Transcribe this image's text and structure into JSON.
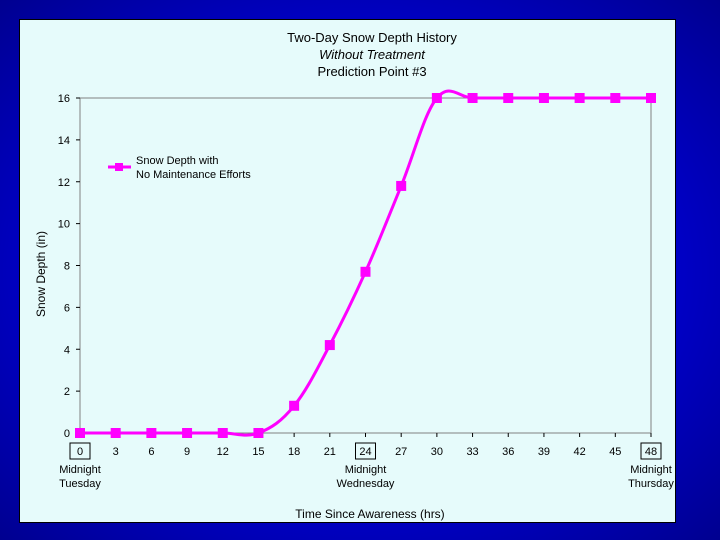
{
  "chart_data": {
    "type": "line",
    "title_lines": [
      "Two-Day Snow Depth History",
      "Without Treatment",
      "Prediction Point #3"
    ],
    "xlabel": "Time Since Awareness (hrs)",
    "ylabel": "Snow Depth (in)",
    "xlim": [
      0,
      48
    ],
    "ylim": [
      0,
      16
    ],
    "x_ticks": [
      "0",
      "3",
      "6",
      "9",
      "12",
      "15",
      "18",
      "21",
      "24",
      "27",
      "30",
      "33",
      "36",
      "39",
      "42",
      "45",
      "48"
    ],
    "boxed_x_ticks": [
      "0",
      "24",
      "48"
    ],
    "y_ticks": [
      "0",
      "2",
      "4",
      "6",
      "8",
      "10",
      "12",
      "14",
      "16"
    ],
    "day_labels": [
      {
        "x": 0,
        "line1": "Midnight",
        "line2": "Tuesday"
      },
      {
        "x": 24,
        "line1": "Midnight",
        "line2": "Wednesday"
      },
      {
        "x": 48,
        "line1": "Midnight",
        "line2": "Thursday"
      }
    ],
    "grid": false,
    "legend_position": "top-left",
    "series": [
      {
        "name": "Snow Depth with No Maintenance Efforts",
        "legend_lines": [
          "Snow Depth with",
          "No Maintenance Efforts"
        ],
        "color": "#ff00ff",
        "x": [
          0,
          3,
          6,
          9,
          12,
          15,
          18,
          21,
          24,
          27,
          30,
          33,
          36,
          39,
          42,
          45,
          48
        ],
        "y": [
          0,
          0,
          0,
          0,
          0,
          0,
          1.3,
          4.2,
          7.7,
          11.8,
          16,
          16,
          16,
          16,
          16,
          16,
          16
        ]
      }
    ]
  }
}
